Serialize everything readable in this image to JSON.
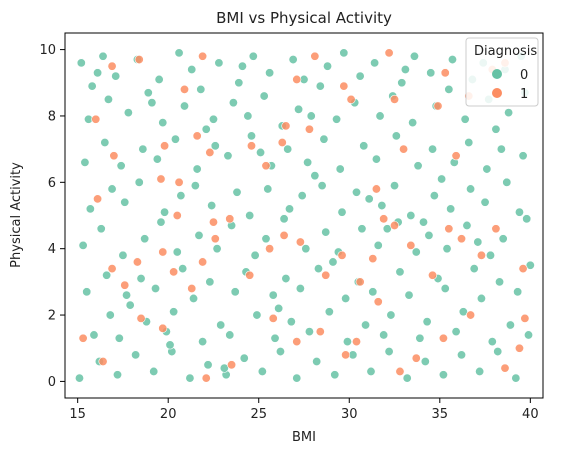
{
  "chart_data": {
    "type": "scatter",
    "title": "BMI vs Physical Activity",
    "xlabel": "BMI",
    "ylabel": "Physical Activity",
    "xlim": [
      14.3,
      40.7
    ],
    "ylim": [
      -0.5,
      10.5
    ],
    "xticks": [
      15,
      20,
      25,
      30,
      35,
      40
    ],
    "yticks": [
      0,
      2,
      4,
      6,
      8,
      10
    ],
    "grid": false,
    "legend": {
      "title": "Diagnosis",
      "placement": "top-right",
      "entries": [
        {
          "label": "0",
          "color": "#66c2a5"
        },
        {
          "label": "1",
          "color": "#fc8d62"
        }
      ]
    },
    "series": [
      {
        "label": "0",
        "color": "#66c2a5",
        "points": [
          [
            15.2,
            9.6
          ],
          [
            15.8,
            8.9
          ],
          [
            16.4,
            9.8
          ],
          [
            17.1,
            9.2
          ],
          [
            18.3,
            9.7
          ],
          [
            19.5,
            9.1
          ],
          [
            20.6,
            9.9
          ],
          [
            21.3,
            9.4
          ],
          [
            22.8,
            9.6
          ],
          [
            23.9,
            9.0
          ],
          [
            24.7,
            9.8
          ],
          [
            25.6,
            9.3
          ],
          [
            26.9,
            9.7
          ],
          [
            27.5,
            9.1
          ],
          [
            28.8,
            9.5
          ],
          [
            29.7,
            9.9
          ],
          [
            30.6,
            9.2
          ],
          [
            31.4,
            9.6
          ],
          [
            32.9,
            9.0
          ],
          [
            33.6,
            9.8
          ],
          [
            34.5,
            9.3
          ],
          [
            35.7,
            9.7
          ],
          [
            36.8,
            9.1
          ],
          [
            37.4,
            9.6
          ],
          [
            38.6,
            9.4
          ],
          [
            39.5,
            9.8
          ],
          [
            15.6,
            7.9
          ],
          [
            16.7,
            8.5
          ],
          [
            17.8,
            8.1
          ],
          [
            18.9,
            8.7
          ],
          [
            19.7,
            7.8
          ],
          [
            20.9,
            8.3
          ],
          [
            21.8,
            8.8
          ],
          [
            22.5,
            7.9
          ],
          [
            23.6,
            8.4
          ],
          [
            24.4,
            8.0
          ],
          [
            25.3,
            8.6
          ],
          [
            26.3,
            7.7
          ],
          [
            27.2,
            8.2
          ],
          [
            28.4,
            8.9
          ],
          [
            29.3,
            7.9
          ],
          [
            30.3,
            8.4
          ],
          [
            31.7,
            8.0
          ],
          [
            32.4,
            8.6
          ],
          [
            33.5,
            7.8
          ],
          [
            34.8,
            8.3
          ],
          [
            35.5,
            8.8
          ],
          [
            36.4,
            7.9
          ],
          [
            37.7,
            8.5
          ],
          [
            38.8,
            8.1
          ],
          [
            39.7,
            8.7
          ],
          [
            15.4,
            6.6
          ],
          [
            16.5,
            7.2
          ],
          [
            17.4,
            6.5
          ],
          [
            18.6,
            7.0
          ],
          [
            19.4,
            6.7
          ],
          [
            20.4,
            7.3
          ],
          [
            21.6,
            6.4
          ],
          [
            22.6,
            7.1
          ],
          [
            23.3,
            6.8
          ],
          [
            24.6,
            7.4
          ],
          [
            25.7,
            6.5
          ],
          [
            26.6,
            7.0
          ],
          [
            27.7,
            6.6
          ],
          [
            28.6,
            7.3
          ],
          [
            29.5,
            6.4
          ],
          [
            30.8,
            7.1
          ],
          [
            31.5,
            6.7
          ],
          [
            32.6,
            7.4
          ],
          [
            33.8,
            6.5
          ],
          [
            34.6,
            7.0
          ],
          [
            35.8,
            6.6
          ],
          [
            36.6,
            7.2
          ],
          [
            37.6,
            6.4
          ],
          [
            38.4,
            7.0
          ],
          [
            39.6,
            6.8
          ],
          [
            15.7,
            5.2
          ],
          [
            16.9,
            5.8
          ],
          [
            17.6,
            5.4
          ],
          [
            18.4,
            6.0
          ],
          [
            19.8,
            5.1
          ],
          [
            20.7,
            5.6
          ],
          [
            21.5,
            5.9
          ],
          [
            22.4,
            5.3
          ],
          [
            23.8,
            5.7
          ],
          [
            24.5,
            5.0
          ],
          [
            25.5,
            5.8
          ],
          [
            26.7,
            5.2
          ],
          [
            27.4,
            5.6
          ],
          [
            28.5,
            5.9
          ],
          [
            29.6,
            5.1
          ],
          [
            30.4,
            5.7
          ],
          [
            31.8,
            5.3
          ],
          [
            32.5,
            5.9
          ],
          [
            33.4,
            5.0
          ],
          [
            34.7,
            5.6
          ],
          [
            35.6,
            5.2
          ],
          [
            36.7,
            5.8
          ],
          [
            37.5,
            5.4
          ],
          [
            38.7,
            6.0
          ],
          [
            39.4,
            5.1
          ],
          [
            15.3,
            4.1
          ],
          [
            16.3,
            4.6
          ],
          [
            17.5,
            3.8
          ],
          [
            18.7,
            4.3
          ],
          [
            19.6,
            4.8
          ],
          [
            20.5,
            3.9
          ],
          [
            21.7,
            4.4
          ],
          [
            22.7,
            4.0
          ],
          [
            23.5,
            4.7
          ],
          [
            24.8,
            3.8
          ],
          [
            25.4,
            4.3
          ],
          [
            26.4,
            4.9
          ],
          [
            27.6,
            4.0
          ],
          [
            28.7,
            4.5
          ],
          [
            29.4,
            3.9
          ],
          [
            30.7,
            4.6
          ],
          [
            31.6,
            4.1
          ],
          [
            32.7,
            4.8
          ],
          [
            33.7,
            3.9
          ],
          [
            34.4,
            4.4
          ],
          [
            35.4,
            4.0
          ],
          [
            36.5,
            4.7
          ],
          [
            37.8,
            3.8
          ],
          [
            38.5,
            4.3
          ],
          [
            39.8,
            4.9
          ],
          [
            15.5,
            2.7
          ],
          [
            16.6,
            3.2
          ],
          [
            17.7,
            2.6
          ],
          [
            18.5,
            3.1
          ],
          [
            19.3,
            2.8
          ],
          [
            20.8,
            3.4
          ],
          [
            21.4,
            2.5
          ],
          [
            22.3,
            3.0
          ],
          [
            23.7,
            2.7
          ],
          [
            24.3,
            3.3
          ],
          [
            25.8,
            2.6
          ],
          [
            26.5,
            3.1
          ],
          [
            27.3,
            2.8
          ],
          [
            28.3,
            3.4
          ],
          [
            29.8,
            2.5
          ],
          [
            30.5,
            3.0
          ],
          [
            31.3,
            2.7
          ],
          [
            32.8,
            3.3
          ],
          [
            33.3,
            2.6
          ],
          [
            34.9,
            3.1
          ],
          [
            35.3,
            2.8
          ],
          [
            36.9,
            3.4
          ],
          [
            37.3,
            2.5
          ],
          [
            38.3,
            3.0
          ],
          [
            39.3,
            2.7
          ],
          [
            15.9,
            1.4
          ],
          [
            16.8,
            2.0
          ],
          [
            17.3,
            1.3
          ],
          [
            18.8,
            1.8
          ],
          [
            19.9,
            1.5
          ],
          [
            20.3,
            2.1
          ],
          [
            21.9,
            1.2
          ],
          [
            22.9,
            1.7
          ],
          [
            23.4,
            1.4
          ],
          [
            24.9,
            2.0
          ],
          [
            25.9,
            1.3
          ],
          [
            26.8,
            1.8
          ],
          [
            27.8,
            1.5
          ],
          [
            28.9,
            2.1
          ],
          [
            29.9,
            1.2
          ],
          [
            30.9,
            1.7
          ],
          [
            31.9,
            1.4
          ],
          [
            32.3,
            2.0
          ],
          [
            33.9,
            1.3
          ],
          [
            34.3,
            1.8
          ],
          [
            35.9,
            1.5
          ],
          [
            36.3,
            2.1
          ],
          [
            37.9,
            1.2
          ],
          [
            38.9,
            1.7
          ],
          [
            39.9,
            1.4
          ],
          [
            15.1,
            0.1
          ],
          [
            16.2,
            0.6
          ],
          [
            17.2,
            0.2
          ],
          [
            18.2,
            0.8
          ],
          [
            19.2,
            0.3
          ],
          [
            20.2,
            0.9
          ],
          [
            21.2,
            0.1
          ],
          [
            22.2,
            0.5
          ],
          [
            23.2,
            0.2
          ],
          [
            24.2,
            0.7
          ],
          [
            25.2,
            0.3
          ],
          [
            26.2,
            0.9
          ],
          [
            27.1,
            0.1
          ],
          [
            28.2,
            0.6
          ],
          [
            29.2,
            0.2
          ],
          [
            30.2,
            0.8
          ],
          [
            31.2,
            0.3
          ],
          [
            32.2,
            0.9
          ],
          [
            33.2,
            0.1
          ],
          [
            34.2,
            0.6
          ],
          [
            35.2,
            0.2
          ],
          [
            36.2,
            0.8
          ],
          [
            37.2,
            0.3
          ],
          [
            38.2,
            0.9
          ],
          [
            39.2,
            0.1
          ],
          [
            16.1,
            9.3
          ],
          [
            19.1,
            8.4
          ],
          [
            22.1,
            7.6
          ],
          [
            25.1,
            6.9
          ],
          [
            28.1,
            6.2
          ],
          [
            31.1,
            5.5
          ],
          [
            34.1,
            4.8
          ],
          [
            37.1,
            4.2
          ],
          [
            40.0,
            3.5
          ],
          [
            17.9,
            2.3
          ],
          [
            20.1,
            1.1
          ],
          [
            23.1,
            0.4
          ],
          [
            26.1,
            2.2
          ],
          [
            29.1,
            3.6
          ],
          [
            32.1,
            4.6
          ],
          [
            35.1,
            6.1
          ],
          [
            38.1,
            7.6
          ],
          [
            24.1,
            9.5
          ],
          [
            27.9,
            8.0
          ],
          [
            33.1,
            9.4
          ]
        ]
      },
      {
        "label": "1",
        "color": "#fc8d62",
        "points": [
          [
            16.0,
            7.9
          ],
          [
            16.9,
            9.5
          ],
          [
            17.0,
            6.8
          ],
          [
            18.4,
            9.7
          ],
          [
            19.6,
            6.1
          ],
          [
            19.8,
            7.1
          ],
          [
            20.6,
            6.0
          ],
          [
            20.9,
            8.8
          ],
          [
            21.6,
            7.4
          ],
          [
            21.9,
            9.8
          ],
          [
            22.3,
            6.9
          ],
          [
            22.5,
            4.8
          ],
          [
            24.6,
            7.1
          ],
          [
            25.4,
            6.5
          ],
          [
            26.3,
            7.2
          ],
          [
            26.5,
            7.7
          ],
          [
            27.1,
            9.1
          ],
          [
            27.8,
            7.6
          ],
          [
            28.1,
            9.8
          ],
          [
            29.7,
            8.9
          ],
          [
            30.1,
            8.5
          ],
          [
            31.5,
            5.8
          ],
          [
            32.2,
            9.9
          ],
          [
            32.5,
            8.5
          ],
          [
            33.0,
            7.0
          ],
          [
            34.9,
            8.3
          ],
          [
            35.3,
            9.3
          ],
          [
            35.9,
            6.8
          ],
          [
            36.6,
            8.6
          ],
          [
            37.9,
            9.4
          ],
          [
            38.6,
            9.6
          ],
          [
            16.1,
            5.5
          ],
          [
            16.9,
            3.4
          ],
          [
            17.6,
            2.9
          ],
          [
            18.3,
            3.6
          ],
          [
            19.7,
            3.9
          ],
          [
            20.3,
            3.3
          ],
          [
            20.5,
            5.0
          ],
          [
            21.9,
            3.6
          ],
          [
            22.6,
            4.3
          ],
          [
            23.4,
            4.9
          ],
          [
            24.5,
            3.2
          ],
          [
            25.6,
            4.0
          ],
          [
            26.4,
            4.4
          ],
          [
            27.3,
            4.2
          ],
          [
            28.7,
            3.2
          ],
          [
            29.6,
            3.8
          ],
          [
            30.6,
            3.0
          ],
          [
            31.3,
            3.7
          ],
          [
            31.9,
            4.9
          ],
          [
            32.5,
            4.7
          ],
          [
            33.4,
            4.1
          ],
          [
            34.6,
            3.2
          ],
          [
            35.5,
            4.6
          ],
          [
            36.2,
            4.3
          ],
          [
            37.3,
            3.8
          ],
          [
            38.1,
            4.6
          ],
          [
            39.6,
            3.4
          ],
          [
            15.3,
            1.3
          ],
          [
            16.4,
            0.6
          ],
          [
            18.5,
            1.9
          ],
          [
            19.7,
            1.6
          ],
          [
            21.3,
            2.8
          ],
          [
            22.1,
            0.1
          ],
          [
            23.5,
            0.5
          ],
          [
            25.8,
            1.9
          ],
          [
            27.1,
            1.2
          ],
          [
            28.4,
            1.5
          ],
          [
            29.8,
            0.8
          ],
          [
            30.4,
            1.2
          ],
          [
            31.6,
            2.4
          ],
          [
            32.8,
            0.3
          ],
          [
            33.7,
            0.7
          ],
          [
            35.2,
            1.3
          ],
          [
            36.7,
            2.0
          ],
          [
            38.6,
            0.4
          ],
          [
            39.4,
            1.0
          ],
          [
            39.7,
            1.9
          ]
        ]
      }
    ]
  }
}
